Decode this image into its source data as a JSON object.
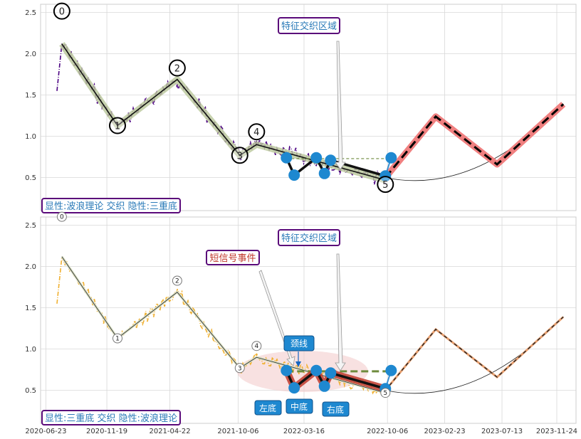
{
  "chart_data": [
    {
      "type": "line",
      "ylim": [
        0.1,
        2.6
      ],
      "y_ticks": [
        "0.5",
        "1.0",
        "1.5",
        "2.0",
        "2.5"
      ],
      "x_ticks": [
        "2020-06-23",
        "2020-11-19",
        "2021-04-22",
        "2021-10-06",
        "2022-03-16",
        "2022-10-06",
        "2023-02-23",
        "2023-07-13",
        "2023-11-24"
      ],
      "grid": true,
      "annotations": {
        "feature_zone": "特征交织区域",
        "caption": "显性:波浪理论 交织 隐性:三重底"
      },
      "wave_labels": [
        "0",
        "1",
        "2",
        "3",
        "4",
        "5"
      ],
      "wave_points": [
        {
          "date": "2020-08-01",
          "value": 2.12
        },
        {
          "date": "2020-12-15",
          "value": 1.13
        },
        {
          "date": "2021-05-10",
          "value": 1.69
        },
        {
          "date": "2021-10-10",
          "value": 0.77
        },
        {
          "date": "2021-11-20",
          "value": 0.9
        },
        {
          "date": "2022-10-01",
          "value": 0.47
        }
      ],
      "projection": [
        {
          "date": "2022-10-01",
          "value": 0.5
        },
        {
          "date": "2023-02-01",
          "value": 1.24
        },
        {
          "date": "2023-07-01",
          "value": 0.66
        },
        {
          "date": "2023-12-10",
          "value": 1.39
        }
      ],
      "triple_bottom_points": [
        {
          "date": "2022-02-01",
          "value": 0.74
        },
        {
          "date": "2022-02-20",
          "value": 0.53
        },
        {
          "date": "2022-04-15",
          "value": 0.74
        },
        {
          "date": "2022-05-05",
          "value": 0.55
        },
        {
          "date": "2022-05-20",
          "value": 0.71
        },
        {
          "date": "2022-10-01",
          "value": 0.52
        },
        {
          "date": "2022-10-15",
          "value": 0.74
        }
      ],
      "neckline": 0.73,
      "price_color": "#4b0082",
      "projection_color": "#ee6666"
    },
    {
      "type": "line",
      "ylim": [
        0.1,
        2.6
      ],
      "y_ticks": [
        "0.5",
        "1.0",
        "1.5",
        "2.0",
        "2.5"
      ],
      "x_ticks": [
        "2020-06-23",
        "2020-11-19",
        "2021-04-22",
        "2021-10-06",
        "2022-03-16",
        "2022-10-06",
        "2023-02-23",
        "2023-07-13",
        "2023-11-24"
      ],
      "grid": true,
      "annotations": {
        "feature_zone": "特征交织区域",
        "signal_event": "短信号事件",
        "neckline_label": "颈线",
        "left_bottom": "左底",
        "middle_bottom": "中底",
        "right_bottom": "右底",
        "caption": "显性:三重底 交织 隐性:波浪理论"
      },
      "wave_labels": [
        "0",
        "1",
        "2",
        "3",
        "4",
        "5"
      ],
      "price_color": "#f0b030",
      "projection_color": "#e8a070"
    }
  ]
}
